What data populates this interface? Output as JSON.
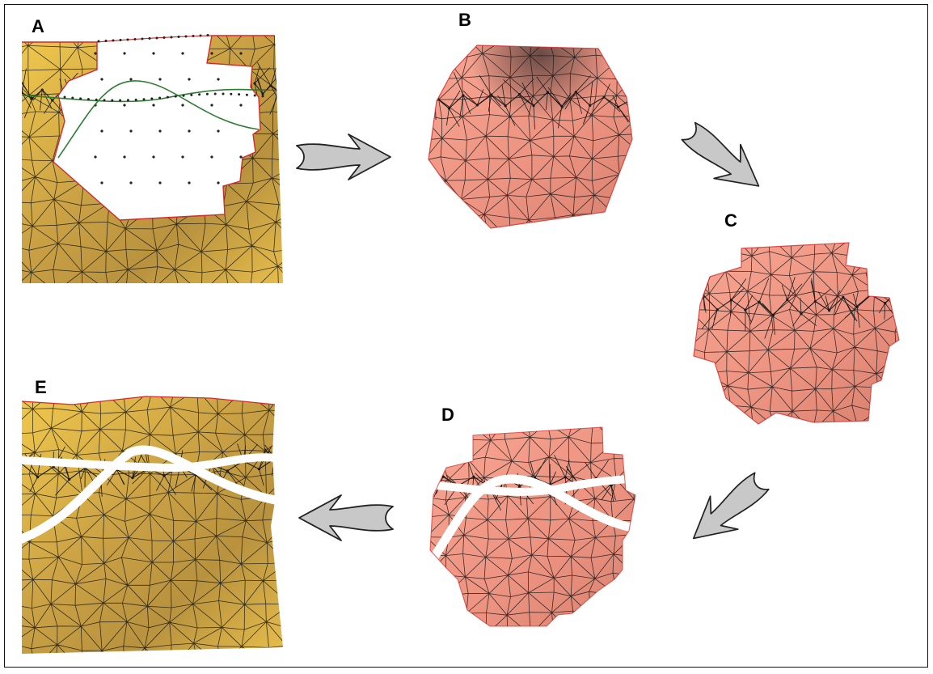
{
  "panels": [
    {
      "id": "A",
      "label": "A"
    },
    {
      "id": "B",
      "label": "B"
    },
    {
      "id": "C",
      "label": "C"
    },
    {
      "id": "D",
      "label": "D"
    },
    {
      "id": "E",
      "label": "E"
    }
  ],
  "colors": {
    "host_surface": "#d9b24a",
    "patch_surface": "#f29a88",
    "mesh_edge": "#1a1a1a",
    "boundary_edge": "#d42a2a",
    "curve": "#2e7d32",
    "arrow_fill": "#c8c8c8",
    "arrow_stroke": "#222222",
    "cut": "#ffffff"
  },
  "icons": [
    "right-arrow-icon",
    "down-right-arrow-icon",
    "down-left-arrow-icon",
    "left-arrow-icon"
  ]
}
